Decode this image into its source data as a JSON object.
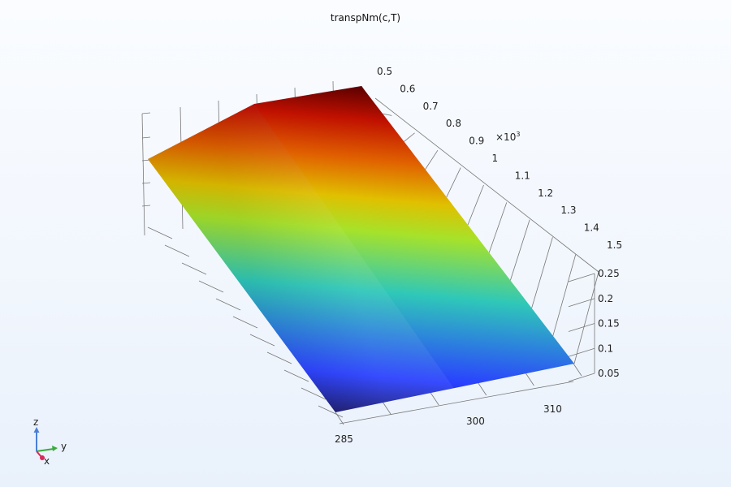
{
  "chart_data": {
    "type": "surface-3d",
    "title": "transpNm(c,T)",
    "axes": {
      "x": {
        "name": "x",
        "range": [
          285,
          315
        ],
        "tick_labels": [
          "285",
          "300",
          "310"
        ]
      },
      "y": {
        "name": "y",
        "range": [
          500,
          1500
        ],
        "multiplier_label": "×10",
        "multiplier_exp": "3",
        "tick_labels": [
          "0.5",
          "0.6",
          "0.7",
          "0.8",
          "0.9",
          "1",
          "1.1",
          "1.2",
          "1.3",
          "1.4",
          "1.5"
        ]
      },
      "z": {
        "name": "z",
        "range": [
          0.05,
          0.27
        ],
        "tick_labels": [
          "0.05",
          "0.1",
          "0.15",
          "0.2",
          "0.25"
        ]
      }
    },
    "colormap": [
      "#1a1a6e",
      "#2a40ff",
      "#2fc8b8",
      "#a6e22a",
      "#e0c000",
      "#e06000",
      "#c01000",
      "#5a0000"
    ],
    "grid": true
  },
  "triad": {
    "x": "x",
    "y": "y",
    "z": "z"
  }
}
